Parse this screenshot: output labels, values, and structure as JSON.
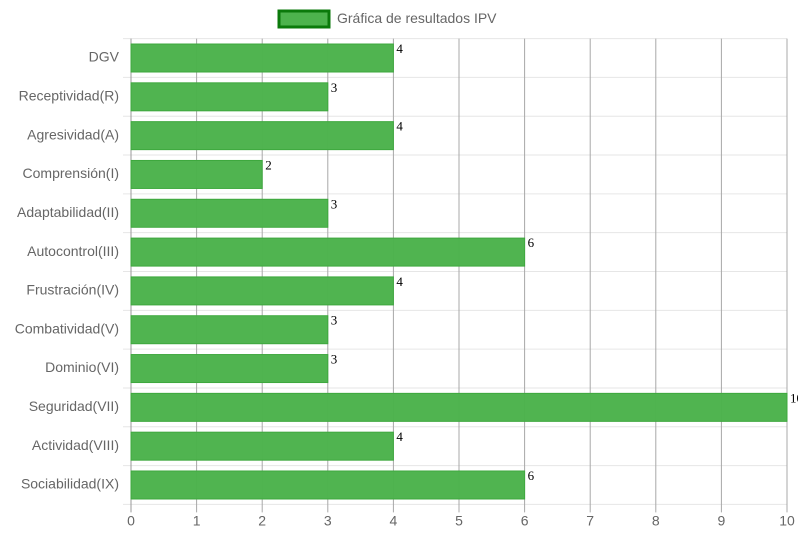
{
  "chart_data": {
    "type": "hbar",
    "categories": [
      "DGV",
      "Receptividad(R)",
      "Agresividad(A)",
      "Comprensión(I)",
      "Adaptabilidad(II)",
      "Autocontrol(III)",
      "Frustración(IV)",
      "Combatividad(V)",
      "Dominio(VI)",
      "Seguridad(VII)",
      "Actividad(VIII)",
      "Sociabilidad(IX)"
    ],
    "series": [
      {
        "name": "Gráfica de resultados IPV",
        "color": "#4db34d",
        "border_color": "#0b7a0b",
        "values": [
          4,
          3,
          4,
          2,
          3,
          6,
          4,
          3,
          3,
          10,
          4,
          6
        ]
      }
    ],
    "xlim": [
      0,
      10
    ],
    "xticks": [
      0,
      1,
      2,
      3,
      4,
      5,
      6,
      7,
      8,
      9,
      10
    ],
    "grid": true
  }
}
